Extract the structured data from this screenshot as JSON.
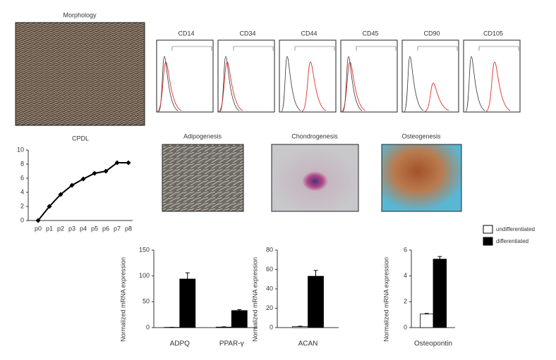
{
  "images": {
    "morphology": "Morphology",
    "flow": [
      "CD14",
      "CD34",
      "CD44",
      "CD45",
      "CD90",
      "CD105"
    ],
    "differentiation": [
      "Adipogenesis",
      "Chondrogenesis",
      "Osteogenesis"
    ]
  },
  "legend": {
    "position": "top-right"
  },
  "chart_data": [
    {
      "type": "line",
      "title": "CPDL",
      "categories": [
        "p0",
        "p1",
        "p2",
        "p3",
        "p4",
        "p5",
        "p6",
        "p7",
        "p8"
      ],
      "values": [
        0,
        2,
        3.7,
        5,
        5.9,
        6.7,
        7,
        8.2,
        8.2
      ],
      "color": "#000000",
      "ylim": [
        0,
        10
      ],
      "yticks": [
        0,
        2,
        4,
        6,
        8,
        10
      ]
    },
    {
      "type": "bar",
      "y_label": "Normalized mRNA expression",
      "categories": [
        "ADPQ",
        "PPAR-γ"
      ],
      "series": [
        {
          "name": "undifferentiated",
          "color": "#ffffff",
          "values": [
            0.5,
            1
          ],
          "errors": [
            0.2,
            0.5
          ]
        },
        {
          "name": "differentiated",
          "color": "#000000",
          "values": [
            94,
            33
          ],
          "errors": [
            12,
            2
          ]
        }
      ],
      "ylim": [
        0,
        150
      ],
      "yticks": [
        0,
        50,
        100,
        150
      ]
    },
    {
      "type": "bar",
      "y_label": "Normalized mRNA expression",
      "categories": [
        "ACAN"
      ],
      "series": [
        {
          "name": "undifferentiated",
          "color": "#ffffff",
          "values": [
            1
          ],
          "errors": [
            0.5
          ]
        },
        {
          "name": "differentiated",
          "color": "#000000",
          "values": [
            53
          ],
          "errors": [
            6
          ]
        }
      ],
      "ylim": [
        0,
        80
      ],
      "yticks": [
        0,
        20,
        40,
        60,
        80
      ]
    },
    {
      "type": "bar",
      "y_label": "Normalized mRNA expression",
      "categories": [
        "Osteopontin"
      ],
      "series": [
        {
          "name": "undifferentiated",
          "color": "#ffffff",
          "values": [
            1.05
          ],
          "errors": [
            0.05
          ]
        },
        {
          "name": "differentiated",
          "color": "#000000",
          "values": [
            5.3
          ],
          "errors": [
            0.2
          ]
        }
      ],
      "ylim": [
        0,
        6
      ],
      "yticks": [
        0,
        2,
        4,
        6
      ]
    }
  ]
}
